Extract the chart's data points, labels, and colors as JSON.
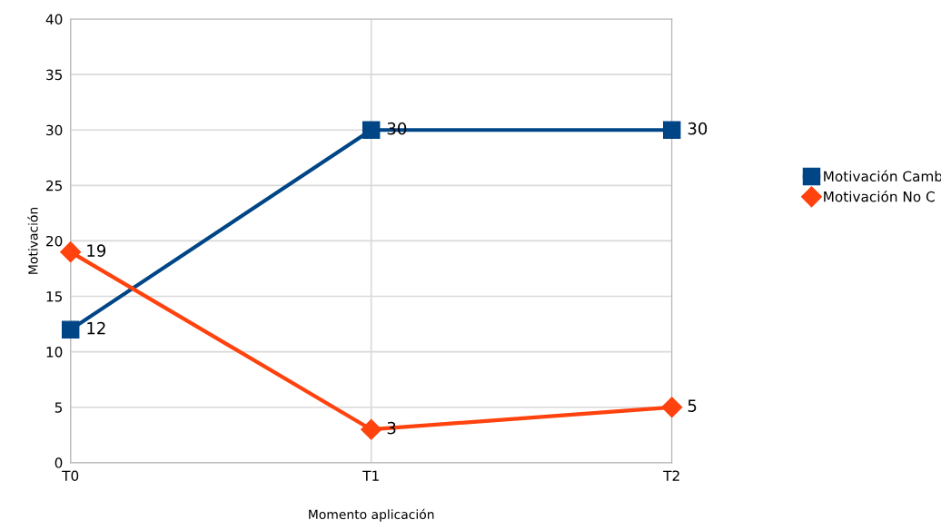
{
  "chart_data": {
    "type": "line",
    "xlabel": "Momento aplicación",
    "ylabel": "Motivación",
    "categories": [
      "T0",
      "T1",
      "T2"
    ],
    "series": [
      {
        "name": "Motivación Camb",
        "color": "#004586",
        "marker": "square",
        "values": [
          12,
          30,
          30
        ]
      },
      {
        "name": "Motivación No C",
        "color": "#ff420e",
        "marker": "diamond",
        "values": [
          19,
          3,
          5
        ]
      }
    ],
    "ylim": [
      0,
      40
    ],
    "yticks": [
      0,
      5,
      10,
      15,
      20,
      25,
      30,
      35,
      40
    ],
    "grid": true,
    "legend": "right",
    "data_labels": true,
    "line_style": "solid"
  }
}
